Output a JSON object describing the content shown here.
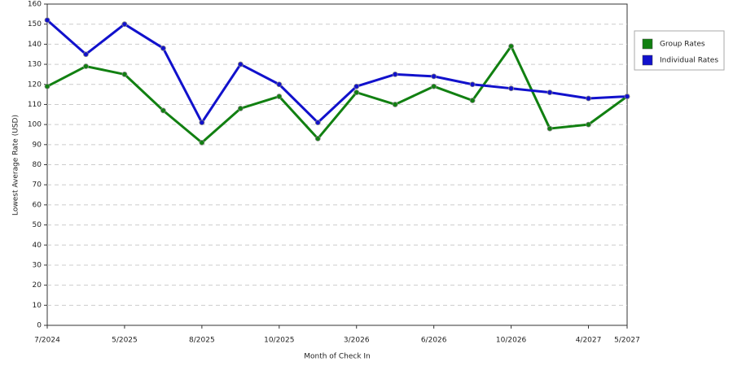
{
  "chart_data": {
    "type": "line",
    "x_label": "Month of Check In",
    "y_label": "Lowest Average Rate (USD)",
    "categories": [
      "7/2024",
      null,
      "5/2025",
      null,
      "8/2025",
      null,
      "10/2025",
      null,
      "3/2026",
      null,
      "6/2026",
      null,
      "10/2026",
      null,
      "4/2027",
      "5/2027"
    ],
    "series": [
      {
        "name": "Group Rates",
        "color": "#118011",
        "values": [
          119,
          129,
          125,
          107,
          91,
          108,
          114,
          93,
          116,
          110,
          119,
          112,
          139,
          98,
          100,
          114
        ]
      },
      {
        "name": "Individual Rates",
        "color": "#1111cc",
        "values": [
          152,
          135,
          150,
          138,
          101,
          130,
          120,
          101,
          119,
          125,
          124,
          120,
          118,
          116,
          113,
          114
        ]
      }
    ],
    "ylim": [
      0,
      160
    ],
    "yticks": [
      0,
      10,
      20,
      30,
      40,
      50,
      60,
      70,
      80,
      90,
      100,
      110,
      120,
      130,
      140,
      150,
      160
    ],
    "grid": true,
    "legend": "right"
  }
}
